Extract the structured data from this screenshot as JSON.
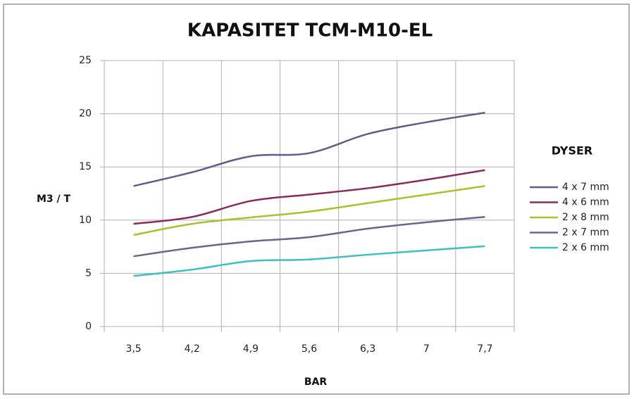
{
  "chart_data": {
    "type": "line",
    "title": "KAPASITET TCM-M10-EL",
    "x_label": "BAR",
    "y_label": "M3 / T",
    "legend_title": "DYSER",
    "categories": [
      "3,5",
      "4,2",
      "4,9",
      "5,6",
      "6,3",
      "7",
      "7,7"
    ],
    "series": [
      {
        "name": "4 x 7 mm",
        "color": "#5e5e8c",
        "values": [
          13.2,
          14.5,
          16.0,
          16.3,
          18.1,
          19.2,
          20.1
        ]
      },
      {
        "name": "4 x 6 mm",
        "color": "#8c2a5c",
        "values": [
          9.65,
          10.3,
          11.8,
          12.4,
          13.0,
          13.8,
          14.7
        ]
      },
      {
        "name": "2 x 8 mm",
        "color": "#a8c22e",
        "values": [
          8.6,
          9.65,
          10.25,
          10.8,
          11.6,
          12.4,
          13.2
        ]
      },
      {
        "name": "2 x 7 mm",
        "color": "#66668f",
        "values": [
          6.6,
          7.4,
          8.0,
          8.4,
          9.2,
          9.8,
          10.3
        ]
      },
      {
        "name": "2 x 6 mm",
        "color": "#3cc0c4",
        "values": [
          4.75,
          5.35,
          6.15,
          6.3,
          6.75,
          7.15,
          7.55
        ]
      }
    ],
    "ylim": [
      0,
      25
    ],
    "yticks": [
      0,
      5,
      10,
      15,
      20,
      25
    ],
    "grid": true,
    "legend": "right"
  }
}
